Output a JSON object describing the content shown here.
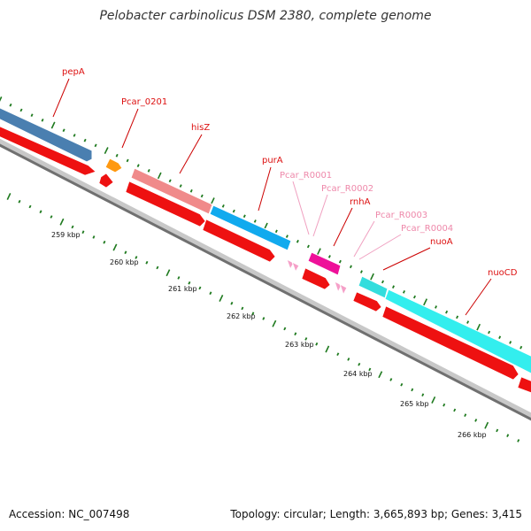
{
  "title": "Pelobacter carbinolicus DSM 2380, complete genome",
  "footer": {
    "accession": "Accession: NC_007498",
    "summary": "Topology: circular; Length: 3,665,893 bp; Genes: 3,415"
  },
  "colors": {
    "tick_green": "#1f7a1f",
    "backbone_dark": "#707070",
    "backbone_light": "#c8c8c8",
    "label_red": "#dd1111",
    "label_pink": "#ee88aa",
    "leader_red": "#cc0000",
    "leader_pink": "#f0a0c0",
    "cds_red": "#ee1111",
    "pepA": "#4a7fb0",
    "Pcar_0201": "#ff9911",
    "hisZ": "#f08a8a",
    "purA": "#11aaee",
    "rnhA": "#ee1199",
    "nuoA": "#33dddd",
    "nuoCD": "#33eeee",
    "rna_pink": "#f5a0c8"
  },
  "kbp_labels": [
    "259 kbp",
    "260 kbp",
    "261 kbp",
    "262 kbp",
    "263 kbp",
    "264 kbp",
    "265 kbp",
    "266 kbp"
  ],
  "gene_labels": [
    {
      "name": "pepA",
      "kind": "protein"
    },
    {
      "name": "Pcar_0201",
      "kind": "protein"
    },
    {
      "name": "hisZ",
      "kind": "protein"
    },
    {
      "name": "purA",
      "kind": "protein"
    },
    {
      "name": "Pcar_R0001",
      "kind": "rna"
    },
    {
      "name": "Pcar_R0002",
      "kind": "rna"
    },
    {
      "name": "rnhA",
      "kind": "protein"
    },
    {
      "name": "Pcar_R0003",
      "kind": "rna"
    },
    {
      "name": "Pcar_R0004",
      "kind": "rna"
    },
    {
      "name": "nuoA",
      "kind": "protein"
    },
    {
      "name": "nuoCD",
      "kind": "protein"
    }
  ]
}
